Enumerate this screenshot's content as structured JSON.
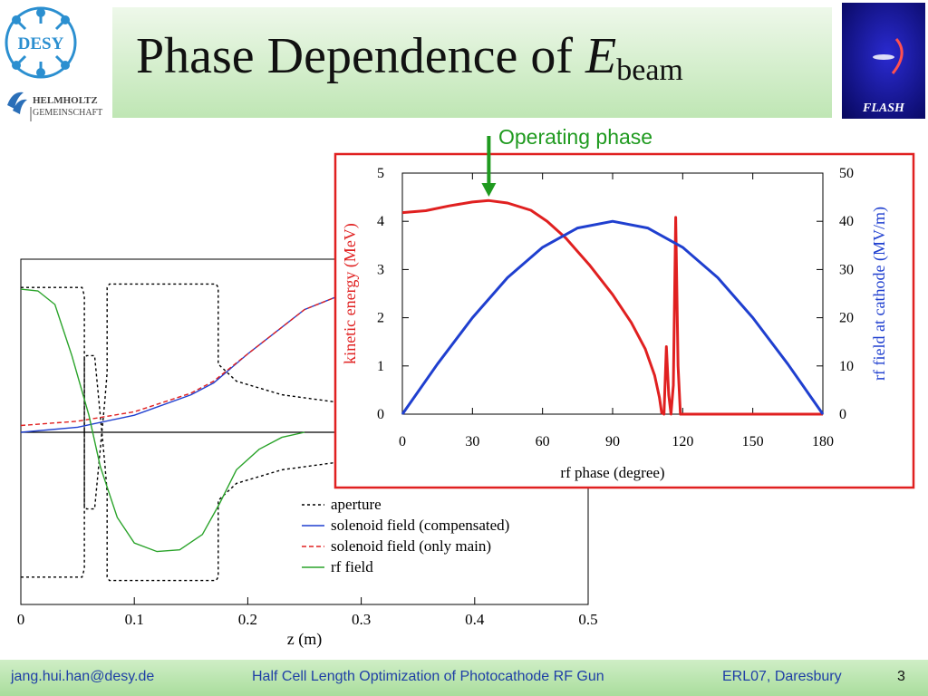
{
  "header": {
    "title_main": "Phase Dependence of ",
    "title_var": "E",
    "title_sub": "beam",
    "desy_logo_text": "DESY",
    "helmholtz_line1": "HELMHOLTZ",
    "helmholtz_line2": "GEMEINSCHAFT",
    "flash_logo_text": "FLASH"
  },
  "annotation": {
    "label": "Operating phase",
    "arrow_x_deg": 37,
    "color": "#1f9a1f"
  },
  "footer": {
    "email": "jang.hui.han@desy.de",
    "talk_title": "Half Cell Length Optimization of Photocathode RF Gun",
    "venue": "ERL07, Daresbury",
    "page": "3"
  },
  "chart_data": [
    {
      "type": "line",
      "xlabel": "z (m)",
      "x_ticks": [
        "0",
        "0.1",
        "0.2",
        "0.3",
        "0.4",
        "0.5"
      ],
      "xlim": [
        0,
        0.5
      ],
      "ylim": [
        -1,
        1
      ],
      "legend_position": "bottom-right",
      "series": [
        {
          "name": "aperture",
          "color": "#000000",
          "style": "dotted",
          "points": [
            [
              0,
              0.85
            ],
            [
              0.054,
              0.85
            ],
            [
              0.056,
              0.8
            ],
            [
              0.056,
              -0.43
            ],
            [
              0.058,
              -0.45
            ],
            [
              0.065,
              -0.45
            ],
            [
              0.074,
              0.18
            ],
            [
              0.076,
              0.35
            ],
            [
              0.076,
              0.85
            ],
            [
              0.078,
              0.87
            ],
            [
              0.172,
              0.87
            ],
            [
              0.174,
              0.85
            ],
            [
              0.174,
              0.4
            ],
            [
              0.19,
              0.3
            ],
            [
              0.23,
              0.22
            ],
            [
              0.275,
              0.18
            ],
            [
              0.5,
              0.18
            ]
          ],
          "mirror": true
        },
        {
          "name": "solenoid field (compensated)",
          "color": "#1f3fcf",
          "style": "solid",
          "points": [
            [
              0,
              0.0
            ],
            [
              0.05,
              0.03
            ],
            [
              0.1,
              0.1
            ],
            [
              0.15,
              0.22
            ],
            [
              0.17,
              0.29
            ],
            [
              0.2,
              0.46
            ],
            [
              0.25,
              0.72
            ],
            [
              0.28,
              0.8
            ],
            [
              0.3,
              0.82
            ],
            [
              0.35,
              0.83
            ],
            [
              0.5,
              0.83
            ]
          ]
        },
        {
          "name": "solenoid field (only main)",
          "color": "#e02020",
          "style": "dashed",
          "points": [
            [
              0,
              0.04
            ],
            [
              0.05,
              0.065
            ],
            [
              0.1,
              0.12
            ],
            [
              0.15,
              0.23
            ],
            [
              0.17,
              0.3
            ],
            [
              0.2,
              0.46
            ],
            [
              0.25,
              0.72
            ],
            [
              0.28,
              0.8
            ],
            [
              0.3,
              0.82
            ],
            [
              0.35,
              0.83
            ],
            [
              0.5,
              0.83
            ]
          ]
        },
        {
          "name": "rf field",
          "color": "#2aa32a",
          "style": "solid",
          "points": [
            [
              0,
              0.84
            ],
            [
              0.015,
              0.83
            ],
            [
              0.03,
              0.75
            ],
            [
              0.045,
              0.45
            ],
            [
              0.06,
              0.1
            ],
            [
              0.07,
              -0.2
            ],
            [
              0.085,
              -0.5
            ],
            [
              0.1,
              -0.65
            ],
            [
              0.12,
              -0.7
            ],
            [
              0.14,
              -0.69
            ],
            [
              0.16,
              -0.6
            ],
            [
              0.175,
              -0.42
            ],
            [
              0.19,
              -0.22
            ],
            [
              0.21,
              -0.1
            ],
            [
              0.23,
              -0.03
            ],
            [
              0.25,
              0.0
            ]
          ]
        }
      ]
    },
    {
      "type": "line",
      "xlabel": "rf phase (degree)",
      "ylabel": "kinetic energy (MeV)",
      "ylabel_right": "rf field at cathode (MV/m)",
      "xlim": [
        0,
        180
      ],
      "ylim": [
        0,
        5
      ],
      "ylim_right": [
        0,
        50
      ],
      "x_ticks": [
        "0",
        "30",
        "60",
        "90",
        "120",
        "150",
        "180"
      ],
      "y_ticks": [
        "0",
        "1",
        "2",
        "3",
        "4",
        "5"
      ],
      "y_ticks_right": [
        "0",
        "10",
        "20",
        "30",
        "40",
        "50"
      ],
      "frame_color": "#e02020",
      "series": [
        {
          "name": "kinetic energy",
          "axis": "left",
          "color": "#e02020",
          "points": [
            [
              0,
              4.18
            ],
            [
              10,
              4.22
            ],
            [
              20,
              4.32
            ],
            [
              30,
              4.4
            ],
            [
              37,
              4.43
            ],
            [
              45,
              4.38
            ],
            [
              55,
              4.23
            ],
            [
              62,
              4.0
            ],
            [
              70,
              3.65
            ],
            [
              80,
              3.1
            ],
            [
              90,
              2.48
            ],
            [
              98,
              1.9
            ],
            [
              104,
              1.35
            ],
            [
              108,
              0.8
            ],
            [
              110,
              0.35
            ],
            [
              111,
              0.03
            ],
            [
              112,
              0.0
            ],
            [
              113,
              1.4
            ],
            [
              114,
              0.4
            ],
            [
              115,
              0.0
            ],
            [
              116,
              0.6
            ],
            [
              117,
              4.08
            ],
            [
              118,
              1.0
            ],
            [
              119,
              0.0
            ],
            [
              180,
              0.0
            ]
          ]
        },
        {
          "name": "rf field at cathode",
          "axis": "right",
          "color": "#1f3fcf",
          "points": [
            [
              0,
              0.0
            ],
            [
              15,
              10.4
            ],
            [
              30,
              20.0
            ],
            [
              45,
              28.3
            ],
            [
              60,
              34.6
            ],
            [
              75,
              38.6
            ],
            [
              90,
              40.0
            ],
            [
              105,
              38.6
            ],
            [
              120,
              34.6
            ],
            [
              135,
              28.3
            ],
            [
              150,
              20.0
            ],
            [
              165,
              10.4
            ],
            [
              180,
              0.0
            ]
          ]
        }
      ]
    }
  ]
}
